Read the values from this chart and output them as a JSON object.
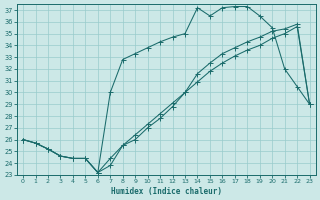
{
  "xlabel": "Humidex (Indice chaleur)",
  "bg_color": "#cce8e7",
  "grid_color": "#99cccc",
  "line_color": "#1a6b6b",
  "xlim": [
    -0.5,
    23.5
  ],
  "ylim": [
    23,
    37.5
  ],
  "xticks": [
    0,
    1,
    2,
    3,
    4,
    5,
    6,
    7,
    8,
    9,
    10,
    11,
    12,
    13,
    14,
    15,
    16,
    17,
    18,
    19,
    20,
    21,
    22,
    23
  ],
  "yticks": [
    23,
    24,
    25,
    26,
    27,
    28,
    29,
    30,
    31,
    32,
    33,
    34,
    35,
    36,
    37
  ],
  "line1_x": [
    0,
    1,
    2,
    3,
    4,
    5,
    6,
    7,
    8,
    9,
    10,
    11,
    12,
    13,
    14,
    15,
    16,
    17,
    18,
    19,
    20,
    21,
    22,
    23
  ],
  "line1_y": [
    26.0,
    25.7,
    25.2,
    24.6,
    24.4,
    24.4,
    23.2,
    24.4,
    25.5,
    26.4,
    27.3,
    28.2,
    29.1,
    30.0,
    30.9,
    31.8,
    32.5,
    33.1,
    33.6,
    34.0,
    34.6,
    35.0,
    35.6,
    29.0
  ],
  "line2_x": [
    0,
    1,
    2,
    3,
    4,
    5,
    6,
    7,
    8,
    9,
    10,
    11,
    12,
    13,
    14,
    15,
    16,
    17,
    18,
    19,
    20,
    21,
    22,
    23
  ],
  "line2_y": [
    26.0,
    25.7,
    25.2,
    24.6,
    24.4,
    24.4,
    23.2,
    23.8,
    25.5,
    26.0,
    27.0,
    27.8,
    28.8,
    30.0,
    31.6,
    32.5,
    33.3,
    33.8,
    34.3,
    34.7,
    35.2,
    35.4,
    35.8,
    29.0
  ],
  "line3_x": [
    0,
    1,
    2,
    3,
    4,
    5,
    6,
    7,
    8,
    9,
    10,
    11,
    12,
    13,
    14,
    15,
    16,
    17,
    18,
    19,
    20,
    21,
    22,
    23
  ],
  "line3_y": [
    26.0,
    25.7,
    25.2,
    24.6,
    24.4,
    24.4,
    23.2,
    30.0,
    32.8,
    33.3,
    33.8,
    34.3,
    34.7,
    35.0,
    37.2,
    36.5,
    37.2,
    37.3,
    37.3,
    36.5,
    35.5,
    32.0,
    30.5,
    29.0
  ]
}
